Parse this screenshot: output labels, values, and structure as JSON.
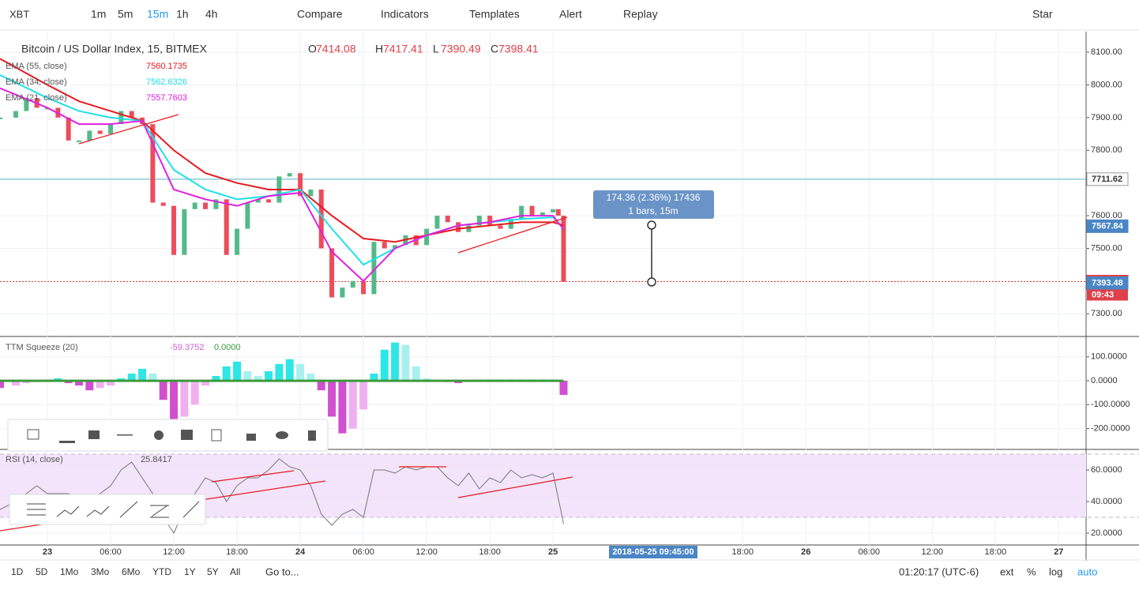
{
  "toolbar": {
    "symbol": "XBT",
    "intervals": [
      "1m",
      "5m",
      "15m",
      "1h",
      "4h"
    ],
    "buttons": [
      "Compare",
      "Indicators",
      "Templates",
      "Alert",
      "Replay"
    ],
    "star": "Star"
  },
  "chart_data": [
    {
      "type": "candle",
      "title": "Bitcoin / US Dollar Index, 15, BITMEX",
      "ohlc": [
        {
          "label": "O",
          "value": 7414.08
        },
        {
          "label": "H",
          "value": 7417.41
        },
        {
          "label": "L",
          "value": 7390.49
        },
        {
          "label": "C",
          "value": 7398.41
        }
      ],
      "xlim": [
        -4.5,
        98.6
      ],
      "ylim": [
        7233,
        8163
      ],
      "yticks": [
        {
          "value": 8100,
          "label": "8100.00"
        },
        {
          "value": 8000,
          "label": "8000.00"
        },
        {
          "value": 7900,
          "label": "7900.00"
        },
        {
          "value": 7800,
          "label": "7800.00"
        },
        {
          "value": 7600,
          "label": "7600.00"
        },
        {
          "value": 7500,
          "label": "7500.00"
        },
        {
          "value": 7300,
          "label": "7300.00"
        }
      ],
      "x": [
        -4.5,
        -3,
        -2,
        -1,
        0,
        1,
        2,
        3,
        4,
        5,
        6,
        7,
        8,
        9,
        10,
        11,
        12,
        13,
        14,
        15,
        16,
        17,
        18,
        19,
        20,
        21,
        22,
        23,
        24,
        25,
        26,
        27,
        28,
        29,
        30,
        31,
        32,
        33,
        34,
        35,
        36,
        37,
        38,
        39,
        40,
        41,
        42,
        43,
        44,
        45,
        46,
        47,
        48,
        48.5,
        49
      ],
      "values": [
        7900,
        7920,
        7960,
        7930,
        7930,
        7900,
        7830,
        7830,
        7860,
        7850,
        7880,
        7920,
        7900,
        7880,
        7640,
        7630,
        7480,
        7620,
        7640,
        7620,
        7650,
        7480,
        7560,
        7640,
        7650,
        7640,
        7720,
        7730,
        7660,
        7680,
        7500,
        7350,
        7380,
        7400,
        7360,
        7520,
        7500,
        7510,
        7540,
        7510,
        7560,
        7600,
        7580,
        7550,
        7570,
        7600,
        7570,
        7560,
        7590,
        7630,
        7600,
        7610,
        7620,
        7600,
        7398.41
      ],
      "up_color": "#53b987",
      "down_color": "#eb4d5c",
      "series": [
        {
          "name": "EMA (55, close)",
          "color": "#e8191e",
          "legend_value": 7560.1735,
          "x": [
            -4.5,
            0,
            3,
            6,
            9,
            12,
            15,
            18,
            21,
            24,
            27,
            30,
            33,
            36,
            39,
            42,
            45,
            48,
            49
          ],
          "values": [
            8080,
            8000,
            7950,
            7920,
            7890,
            7800,
            7730,
            7700,
            7680,
            7680,
            7600,
            7530,
            7520,
            7540,
            7560,
            7570,
            7580,
            7580,
            7570
          ]
        },
        {
          "name": "EMA (34, close)",
          "color": "#1fe0e8",
          "legend_value": 7562.6326,
          "x": [
            -4.5,
            0,
            3,
            6,
            9,
            12,
            15,
            18,
            21,
            24,
            27,
            30,
            33,
            36,
            39,
            42,
            45,
            48,
            49
          ],
          "values": [
            8030,
            7960,
            7920,
            7900,
            7890,
            7740,
            7680,
            7650,
            7660,
            7680,
            7560,
            7450,
            7500,
            7540,
            7570,
            7580,
            7590,
            7595,
            7560
          ]
        },
        {
          "name": "EMA (21, close)",
          "color": "#e020e0",
          "legend_value": 7557.7603,
          "x": [
            -4.5,
            0,
            3,
            6,
            9,
            12,
            15,
            18,
            21,
            24,
            27,
            30,
            33,
            36,
            39,
            42,
            45,
            48,
            49
          ],
          "values": [
            7990,
            7930,
            7880,
            7880,
            7890,
            7680,
            7650,
            7630,
            7660,
            7670,
            7490,
            7400,
            7500,
            7540,
            7570,
            7580,
            7600,
            7600,
            7558
          ]
        }
      ],
      "price_lines": [
        {
          "value": 7711.62,
          "color": "#55b4c8"
        },
        {
          "value": 7398.41,
          "color": "#e03030"
        }
      ],
      "price_tags": [
        {
          "value": 7711.62,
          "color": "#ffffff",
          "text_color": "#333333"
        },
        {
          "value": 7567.84,
          "color": "#4a86c5",
          "text_color": "#ffffff"
        },
        {
          "value": 7398.41,
          "color": "#e0404a",
          "text_color": "#ffffff"
        },
        {
          "value": 7393.48,
          "color": "#4a86c5",
          "text_color": "#ffffff"
        }
      ],
      "countdown": "09:43",
      "measure": {
        "line1": "174.36 (2.36%) 17436",
        "line2": "1 bars, 15m"
      }
    },
    {
      "type": "bar",
      "name": "TTM Squeeze (20)",
      "legend_values": [
        -59.3752,
        {
          "value": 0,
          "label": "0.0000"
        }
      ],
      "xlim": [
        -4.5,
        98.6
      ],
      "ylim": [
        -284,
        182
      ],
      "yticks": [
        {
          "value": 100,
          "label": "100.0000"
        },
        {
          "value": 0,
          "label": "0.0000"
        },
        {
          "value": -100,
          "label": "-100.0000"
        },
        {
          "value": -200,
          "label": "-200.0000"
        }
      ],
      "colors": {
        "up_rising": "#2ee6e6",
        "up_falling": "#a8f0f0",
        "down_falling": "#d050d0",
        "down_rising": "#f0b0f0"
      },
      "x": [
        -4.5,
        -3,
        -2,
        -1,
        0,
        1,
        2,
        3,
        4,
        5,
        6,
        7,
        8,
        9,
        10,
        11,
        12,
        13,
        14,
        15,
        16,
        17,
        18,
        19,
        20,
        21,
        22,
        23,
        24,
        25,
        26,
        27,
        28,
        29,
        30,
        31,
        32,
        33,
        34,
        35,
        36,
        37,
        38,
        39,
        40,
        41,
        42,
        43,
        44,
        45,
        46,
        47,
        48,
        49
      ],
      "values": [
        -30,
        -20,
        -10,
        -5,
        5,
        10,
        -10,
        -20,
        -40,
        -30,
        -20,
        10,
        30,
        50,
        30,
        -80,
        -160,
        -150,
        -100,
        -20,
        20,
        60,
        80,
        40,
        20,
        40,
        70,
        90,
        70,
        30,
        -40,
        -150,
        -220,
        -200,
        -120,
        30,
        130,
        160,
        150,
        60,
        10,
        5,
        -5,
        -10,
        -5,
        5,
        5,
        5,
        5,
        5,
        5,
        5,
        5,
        -59.38
      ]
    },
    {
      "type": "line",
      "name": "RSI (14, close)",
      "legend_value": 25.8417,
      "color": "#777777",
      "xlim": [
        -4.5,
        98.6
      ],
      "ylim": [
        12.5,
        72.5
      ],
      "band": [
        30,
        70
      ],
      "yticks": [
        {
          "value": 60,
          "label": "60.0000"
        },
        {
          "value": 40,
          "label": "40.0000"
        },
        {
          "value": 20,
          "label": "20.0000"
        }
      ],
      "x": [
        -4.5,
        -3,
        -1,
        0,
        2,
        4,
        6,
        7,
        8,
        9,
        10,
        11,
        12,
        13,
        14,
        15,
        16,
        17,
        18,
        19,
        20,
        21,
        22,
        23,
        24,
        25,
        26,
        27,
        28,
        29,
        30,
        31,
        32,
        33,
        34,
        35,
        36,
        37,
        38,
        39,
        40,
        41,
        42,
        43,
        44,
        45,
        46,
        47,
        48,
        49
      ],
      "values": [
        35,
        40,
        50,
        45,
        45,
        40,
        50,
        60,
        65,
        55,
        45,
        30,
        20,
        35,
        45,
        55,
        52,
        40,
        50,
        55,
        55,
        60,
        67,
        62,
        60,
        50,
        32,
        25,
        32,
        35,
        30,
        60,
        60,
        58,
        62,
        60,
        62,
        62,
        55,
        50,
        58,
        48,
        55,
        52,
        60,
        55,
        57,
        55,
        58,
        25.84
      ]
    }
  ],
  "time_axis": {
    "ticks": [
      {
        "value": 0,
        "label": "23"
      },
      {
        "value": 6,
        "label": "06:00"
      },
      {
        "value": 12,
        "label": "12:00"
      },
      {
        "value": 18,
        "label": "18:00"
      },
      {
        "value": 24,
        "label": "24"
      },
      {
        "value": 30,
        "label": "06:00"
      },
      {
        "value": 36,
        "label": "12:00"
      },
      {
        "value": 42,
        "label": "18:00"
      },
      {
        "value": 48,
        "label": "25"
      },
      {
        "value": 66,
        "label": "18:00"
      },
      {
        "value": 72,
        "label": "26"
      },
      {
        "value": 78,
        "label": "06:00"
      },
      {
        "value": 84,
        "label": "12:00"
      },
      {
        "value": 90,
        "label": "18:00"
      },
      {
        "value": 96,
        "label": "27"
      }
    ],
    "cursor_label": "2018-05-25 09:45:00"
  },
  "bottom_bar": {
    "ranges": [
      "1D",
      "5D",
      "1Mo",
      "3Mo",
      "6Mo",
      "YTD",
      "1Y",
      "5Y",
      "All"
    ],
    "goto": "Go to...",
    "clock": "01:20:17 (UTC-6)",
    "options": [
      "ext",
      "%",
      "log",
      "auto"
    ]
  }
}
